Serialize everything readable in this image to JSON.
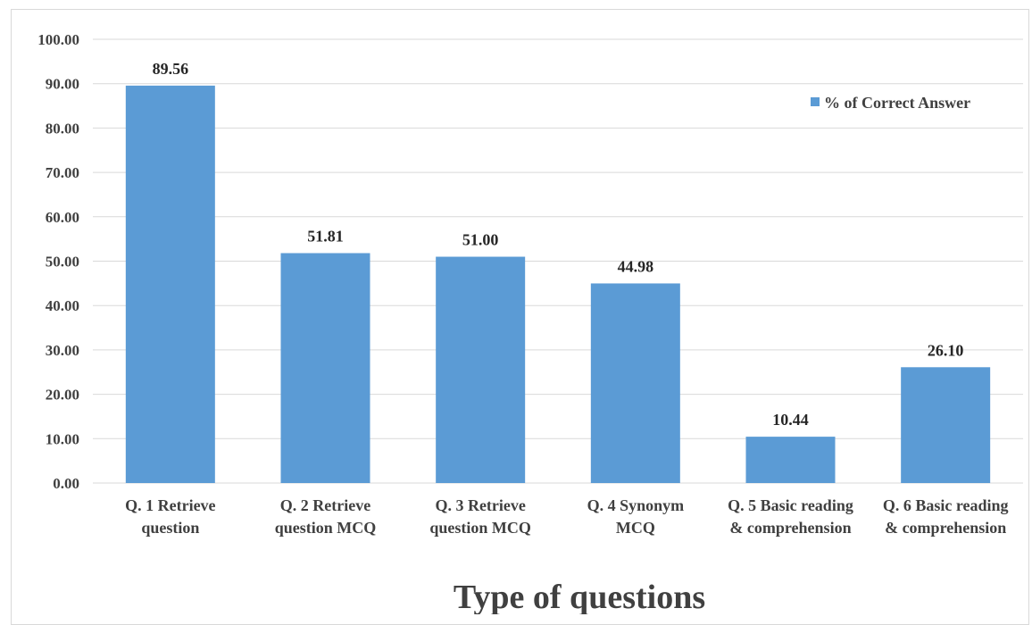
{
  "chart_data": {
    "type": "bar",
    "title": "",
    "xlabel": "Type of questions",
    "ylabel": "",
    "ylim": [
      0,
      100
    ],
    "y_ticks": [
      "0.00",
      "10.00",
      "20.00",
      "30.00",
      "40.00",
      "50.00",
      "60.00",
      "70.00",
      "80.00",
      "90.00",
      "100.00"
    ],
    "grid": true,
    "legend_position": "top-right",
    "categories": [
      [
        "Q. 1 Retrieve",
        "question"
      ],
      [
        "Q. 2 Retrieve",
        "question MCQ"
      ],
      [
        "Q. 3 Retrieve",
        "question MCQ"
      ],
      [
        "Q. 4 Synonym",
        "MCQ"
      ],
      [
        "Q. 5 Basic reading",
        "& comprehension"
      ],
      [
        "Q. 6 Basic reading",
        "& comprehension"
      ]
    ],
    "series": [
      {
        "name": "% of Correct Answer",
        "color": "#5b9bd5",
        "values": [
          89.56,
          51.81,
          51.0,
          44.98,
          10.44,
          26.1
        ],
        "labels": [
          "89.56",
          "51.81",
          "51.00",
          "44.98",
          "10.44",
          "26.10"
        ]
      }
    ],
    "colors": {
      "grid": "#d9d9d9",
      "text": "#404040"
    }
  }
}
